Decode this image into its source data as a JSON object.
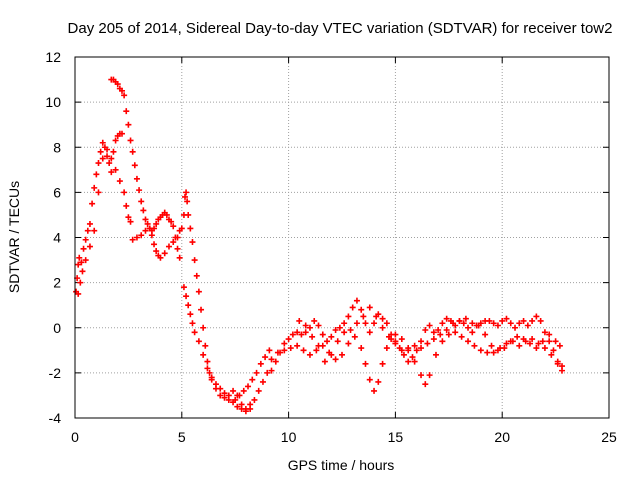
{
  "chart_data": {
    "type": "scatter",
    "title": "Day 205 of 2014, Sidereal Day-to-day VTEC variation (SDTVAR) for receiver tow2",
    "xlabel": "GPS time / hours",
    "ylabel": "SDTVAR / TECUs",
    "xlim": [
      0,
      25
    ],
    "ylim": [
      -4,
      12
    ],
    "xticks": [
      0,
      5,
      10,
      15,
      20,
      25
    ],
    "yticks": [
      -4,
      -2,
      0,
      2,
      4,
      6,
      8,
      10,
      12
    ],
    "grid": true,
    "marker": "+",
    "series_color": "#ff0000",
    "series": [
      {
        "name": "SDTVAR",
        "points": [
          [
            0.05,
            1.6
          ],
          [
            0.1,
            2.2
          ],
          [
            0.15,
            2.8
          ],
          [
            0.2,
            3.1
          ],
          [
            0.3,
            2.9
          ],
          [
            0.4,
            3.5
          ],
          [
            0.5,
            3.9
          ],
          [
            0.6,
            4.3
          ],
          [
            0.7,
            4.6
          ],
          [
            0.8,
            5.5
          ],
          [
            0.9,
            6.2
          ],
          [
            1.0,
            6.8
          ],
          [
            1.1,
            7.3
          ],
          [
            1.2,
            7.8
          ],
          [
            1.3,
            8.2
          ],
          [
            1.4,
            8.0
          ],
          [
            1.5,
            7.6
          ],
          [
            1.6,
            7.3
          ],
          [
            1.7,
            6.9
          ],
          [
            1.8,
            7.8
          ],
          [
            1.9,
            8.3
          ],
          [
            2.0,
            8.5
          ],
          [
            2.1,
            8.6
          ],
          [
            2.2,
            8.6
          ],
          [
            0.15,
            1.5
          ],
          [
            0.25,
            2.0
          ],
          [
            0.35,
            2.5
          ],
          [
            0.5,
            3.0
          ],
          [
            0.7,
            3.6
          ],
          [
            0.9,
            4.3
          ],
          [
            1.1,
            6.0
          ],
          [
            1.3,
            7.5
          ],
          [
            1.5,
            7.9
          ],
          [
            1.7,
            7.5
          ],
          [
            1.9,
            7.0
          ],
          [
            2.1,
            6.5
          ],
          [
            2.3,
            6.0
          ],
          [
            2.4,
            5.4
          ],
          [
            2.5,
            4.9
          ],
          [
            2.6,
            4.7
          ],
          [
            1.7,
            11.0
          ],
          [
            1.8,
            11.0
          ],
          [
            1.9,
            10.9
          ],
          [
            2.0,
            10.8
          ],
          [
            2.1,
            10.6
          ],
          [
            2.2,
            10.5
          ],
          [
            2.3,
            10.3
          ],
          [
            2.4,
            9.6
          ],
          [
            2.5,
            9.0
          ],
          [
            2.6,
            8.3
          ],
          [
            2.7,
            7.8
          ],
          [
            2.8,
            7.2
          ],
          [
            2.9,
            6.6
          ],
          [
            3.0,
            6.1
          ],
          [
            3.1,
            5.6
          ],
          [
            3.2,
            5.2
          ],
          [
            3.3,
            4.8
          ],
          [
            3.4,
            4.6
          ],
          [
            3.5,
            4.4
          ],
          [
            3.6,
            4.3
          ],
          [
            3.7,
            4.4
          ],
          [
            3.8,
            4.6
          ],
          [
            3.9,
            4.8
          ],
          [
            4.0,
            4.9
          ],
          [
            4.1,
            5.0
          ],
          [
            4.2,
            5.1
          ],
          [
            4.3,
            5.0
          ],
          [
            4.4,
            4.8
          ],
          [
            4.5,
            4.7
          ],
          [
            4.6,
            4.5
          ],
          [
            4.7,
            4.0
          ],
          [
            4.8,
            3.5
          ],
          [
            4.9,
            3.1
          ],
          [
            2.7,
            3.9
          ],
          [
            2.9,
            4.0
          ],
          [
            3.1,
            4.1
          ],
          [
            3.3,
            4.3
          ],
          [
            3.5,
            4.4
          ],
          [
            3.6,
            4.1
          ],
          [
            3.7,
            3.7
          ],
          [
            3.8,
            3.4
          ],
          [
            3.9,
            3.2
          ],
          [
            4.0,
            3.1
          ],
          [
            4.2,
            3.3
          ],
          [
            4.4,
            3.6
          ],
          [
            4.6,
            3.8
          ],
          [
            4.8,
            4.0
          ],
          [
            4.9,
            4.3
          ],
          [
            5.0,
            4.4
          ],
          [
            5.1,
            5.0
          ],
          [
            5.15,
            5.8
          ],
          [
            5.2,
            6.0
          ],
          [
            5.25,
            5.6
          ],
          [
            5.3,
            5.0
          ],
          [
            5.4,
            4.4
          ],
          [
            5.5,
            3.8
          ],
          [
            5.6,
            3.0
          ],
          [
            5.7,
            2.3
          ],
          [
            5.8,
            1.6
          ],
          [
            5.9,
            0.8
          ],
          [
            6.0,
            0.0
          ],
          [
            6.1,
            -0.8
          ],
          [
            6.2,
            -1.5
          ],
          [
            6.3,
            -2.0
          ],
          [
            5.1,
            1.8
          ],
          [
            5.2,
            1.4
          ],
          [
            5.3,
            1.0
          ],
          [
            5.4,
            0.6
          ],
          [
            5.5,
            0.2
          ],
          [
            5.6,
            -0.2
          ],
          [
            5.8,
            -0.6
          ],
          [
            6.0,
            -1.2
          ],
          [
            6.2,
            -1.8
          ],
          [
            6.4,
            -2.3
          ],
          [
            6.6,
            -2.7
          ],
          [
            6.8,
            -3.0
          ],
          [
            7.0,
            -3.1
          ],
          [
            7.2,
            -3.2
          ],
          [
            7.4,
            -3.3
          ],
          [
            7.6,
            -3.5
          ],
          [
            7.8,
            -3.6
          ],
          [
            8.0,
            -3.6
          ],
          [
            8.2,
            -3.4
          ],
          [
            6.4,
            -2.2
          ],
          [
            6.6,
            -2.5
          ],
          [
            6.8,
            -2.7
          ],
          [
            7.0,
            -2.9
          ],
          [
            7.2,
            -3.0
          ],
          [
            7.4,
            -2.8
          ],
          [
            7.6,
            -3.0
          ],
          [
            7.8,
            -3.4
          ],
          [
            8.0,
            -3.7
          ],
          [
            8.2,
            -3.6
          ],
          [
            8.4,
            -3.2
          ],
          [
            8.6,
            -2.8
          ],
          [
            8.8,
            -2.4
          ],
          [
            9.0,
            -2.0
          ],
          [
            7.5,
            -3.2
          ],
          [
            7.7,
            -3.0
          ],
          [
            7.9,
            -2.8
          ],
          [
            8.1,
            -2.6
          ],
          [
            8.3,
            -2.3
          ],
          [
            8.5,
            -2.0
          ],
          [
            8.7,
            -1.6
          ],
          [
            8.9,
            -1.3
          ],
          [
            9.1,
            -1.0
          ],
          [
            9.2,
            -1.9
          ],
          [
            9.4,
            -1.5
          ],
          [
            9.6,
            -1.1
          ],
          [
            9.8,
            -0.7
          ],
          [
            10.0,
            -0.5
          ],
          [
            10.2,
            -0.3
          ],
          [
            10.4,
            -0.2
          ],
          [
            10.6,
            -0.3
          ],
          [
            10.8,
            -0.2
          ],
          [
            11.0,
            0.0
          ],
          [
            11.2,
            0.3
          ],
          [
            11.4,
            0.1
          ],
          [
            11.6,
            -0.3
          ],
          [
            11.8,
            -0.6
          ],
          [
            12.0,
            -0.4
          ],
          [
            12.2,
            -0.1
          ],
          [
            12.4,
            0.0
          ],
          [
            12.6,
            0.2
          ],
          [
            12.8,
            0.5
          ],
          [
            13.0,
            0.9
          ],
          [
            13.2,
            1.2
          ],
          [
            13.4,
            0.8
          ],
          [
            13.6,
            0.2
          ],
          [
            13.8,
            -0.2
          ],
          [
            14.0,
            0.2
          ],
          [
            14.2,
            0.6
          ],
          [
            14.4,
            0.4
          ],
          [
            14.6,
            0.2
          ],
          [
            14.8,
            -0.3
          ],
          [
            15.0,
            -0.6
          ],
          [
            15.2,
            -0.9
          ],
          [
            15.4,
            -1.2
          ],
          [
            15.6,
            -1.5
          ],
          [
            15.8,
            -1.3
          ],
          [
            16.0,
            -1.0
          ],
          [
            16.2,
            -0.6
          ],
          [
            16.4,
            -0.1
          ],
          [
            16.6,
            0.1
          ],
          [
            16.8,
            -0.2
          ],
          [
            17.0,
            -0.1
          ],
          [
            17.2,
            0.2
          ],
          [
            17.4,
            0.4
          ],
          [
            17.6,
            0.3
          ],
          [
            17.8,
            0.1
          ],
          [
            18.0,
            0.3
          ],
          [
            18.2,
            0.2
          ],
          [
            18.4,
            0.0
          ],
          [
            18.6,
            -0.2
          ],
          [
            18.8,
            0.1
          ],
          [
            19.0,
            0.2
          ],
          [
            19.2,
            0.3
          ],
          [
            19.4,
            0.3
          ],
          [
            19.6,
            0.2
          ],
          [
            19.8,
            0.1
          ],
          [
            20.0,
            0.3
          ],
          [
            20.2,
            0.4
          ],
          [
            20.4,
            0.2
          ],
          [
            20.6,
            0.0
          ],
          [
            20.8,
            0.2
          ],
          [
            21.0,
            0.3
          ],
          [
            21.2,
            0.1
          ],
          [
            21.4,
            0.3
          ],
          [
            21.6,
            0.5
          ],
          [
            21.8,
            0.3
          ],
          [
            22.0,
            -0.2
          ],
          [
            22.2,
            -0.6
          ],
          [
            22.4,
            -1.0
          ],
          [
            22.6,
            -1.5
          ],
          [
            22.8,
            -1.7
          ],
          [
            9.2,
            -1.4
          ],
          [
            9.5,
            -1.1
          ],
          [
            9.8,
            -1.0
          ],
          [
            10.1,
            -0.9
          ],
          [
            10.4,
            -0.8
          ],
          [
            10.7,
            -1.0
          ],
          [
            11.0,
            -1.2
          ],
          [
            11.3,
            -1.0
          ],
          [
            11.6,
            -0.8
          ],
          [
            11.9,
            -1.1
          ],
          [
            12.2,
            -1.4
          ],
          [
            12.5,
            -1.2
          ],
          [
            12.8,
            -0.7
          ],
          [
            13.1,
            -0.4
          ],
          [
            13.4,
            -0.9
          ],
          [
            13.6,
            -1.6
          ],
          [
            13.8,
            -2.3
          ],
          [
            14.0,
            -2.8
          ],
          [
            14.2,
            -2.4
          ],
          [
            14.4,
            -1.6
          ],
          [
            14.6,
            -0.9
          ],
          [
            14.8,
            -0.5
          ],
          [
            15.0,
            -0.3
          ],
          [
            15.3,
            -0.5
          ],
          [
            15.6,
            -0.9
          ],
          [
            15.9,
            -1.5
          ],
          [
            16.2,
            -2.1
          ],
          [
            16.4,
            -2.5
          ],
          [
            16.6,
            -2.1
          ],
          [
            16.9,
            -1.2
          ],
          [
            17.2,
            -0.6
          ],
          [
            17.5,
            -0.3
          ],
          [
            17.8,
            -0.2
          ],
          [
            18.1,
            -0.4
          ],
          [
            18.4,
            -0.6
          ],
          [
            18.7,
            -0.8
          ],
          [
            19.0,
            -1.0
          ],
          [
            19.3,
            -1.1
          ],
          [
            19.6,
            -1.1
          ],
          [
            19.9,
            -0.9
          ],
          [
            20.2,
            -0.7
          ],
          [
            20.5,
            -0.6
          ],
          [
            20.8,
            -0.8
          ],
          [
            21.1,
            -0.6
          ],
          [
            21.4,
            -0.5
          ],
          [
            21.7,
            -0.7
          ],
          [
            22.0,
            -0.9
          ],
          [
            22.3,
            -1.2
          ],
          [
            22.6,
            -1.6
          ],
          [
            22.8,
            -1.9
          ],
          [
            10.5,
            0.3
          ],
          [
            10.8,
            0.1
          ],
          [
            11.1,
            -0.4
          ],
          [
            11.4,
            -0.8
          ],
          [
            11.7,
            -1.5
          ],
          [
            12.0,
            -1.2
          ],
          [
            12.3,
            -0.6
          ],
          [
            12.6,
            -0.2
          ],
          [
            12.9,
            -0.1
          ],
          [
            13.2,
            0.2
          ],
          [
            13.5,
            0.5
          ],
          [
            13.8,
            0.9
          ],
          [
            14.1,
            0.5
          ],
          [
            14.4,
            0.0
          ],
          [
            14.7,
            -0.4
          ],
          [
            15.0,
            -0.7
          ],
          [
            15.3,
            -1.0
          ],
          [
            15.6,
            -1.0
          ],
          [
            15.9,
            -0.8
          ],
          [
            16.2,
            -0.9
          ],
          [
            16.5,
            -0.7
          ],
          [
            16.8,
            -0.5
          ],
          [
            17.1,
            -0.3
          ],
          [
            17.4,
            -0.1
          ],
          [
            17.7,
            0.2
          ],
          [
            18.0,
            0.3
          ],
          [
            18.3,
            0.4
          ],
          [
            18.6,
            0.2
          ],
          [
            18.9,
            0.1
          ],
          [
            19.2,
            -0.3
          ],
          [
            19.5,
            -0.8
          ],
          [
            19.8,
            -1.0
          ],
          [
            20.1,
            -0.9
          ],
          [
            20.4,
            -0.6
          ],
          [
            20.7,
            -0.4
          ],
          [
            21.0,
            -0.5
          ],
          [
            21.3,
            -0.7
          ],
          [
            21.6,
            -0.9
          ],
          [
            21.9,
            -0.6
          ],
          [
            22.2,
            -0.3
          ],
          [
            22.5,
            -0.6
          ],
          [
            22.7,
            -0.8
          ]
        ]
      }
    ]
  }
}
